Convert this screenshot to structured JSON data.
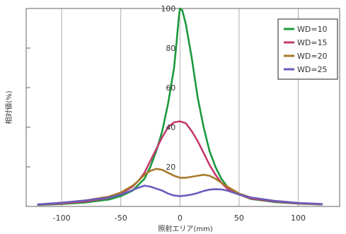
{
  "chart_data": {
    "type": "line",
    "xlabel": "照射エリア(mm)",
    "ylabel": "相対値(%)",
    "xlim": [
      -130,
      135
    ],
    "ylim": [
      0,
      100
    ],
    "x_ticks": [
      -100,
      -50,
      0,
      50,
      100
    ],
    "y_ticks": [
      20,
      40,
      60,
      80,
      100
    ],
    "grid": "vertical",
    "legend_position": "top-right",
    "series": [
      {
        "name": "WD=10",
        "color": "#1a9a3c",
        "points": [
          [
            -120,
            0.8
          ],
          [
            -100,
            1.2
          ],
          [
            -80,
            2.0
          ],
          [
            -60,
            3.5
          ],
          [
            -50,
            5.2
          ],
          [
            -40,
            8
          ],
          [
            -35,
            11
          ],
          [
            -30,
            14
          ],
          [
            -25,
            20
          ],
          [
            -20,
            28
          ],
          [
            -15,
            38
          ],
          [
            -10,
            52
          ],
          [
            -5,
            70
          ],
          [
            -3,
            82
          ],
          [
            -1,
            95
          ],
          [
            0,
            100
          ],
          [
            2,
            99
          ],
          [
            5,
            92
          ],
          [
            10,
            75
          ],
          [
            15,
            55
          ],
          [
            20,
            40
          ],
          [
            25,
            28
          ],
          [
            30,
            20
          ],
          [
            35,
            14
          ],
          [
            40,
            10
          ],
          [
            50,
            6
          ],
          [
            60,
            3.8
          ],
          [
            80,
            2.2
          ],
          [
            100,
            1.4
          ],
          [
            120,
            1.0
          ]
        ]
      },
      {
        "name": "WD=15",
        "color": "#c23a6e",
        "points": [
          [
            -120,
            0.9
          ],
          [
            -100,
            1.5
          ],
          [
            -80,
            2.5
          ],
          [
            -60,
            4.3
          ],
          [
            -50,
            6.5
          ],
          [
            -40,
            10
          ],
          [
            -35,
            13
          ],
          [
            -30,
            17
          ],
          [
            -25,
            23
          ],
          [
            -20,
            29
          ],
          [
            -15,
            35
          ],
          [
            -10,
            40
          ],
          [
            -5,
            42.5
          ],
          [
            0,
            43
          ],
          [
            5,
            42
          ],
          [
            10,
            38
          ],
          [
            15,
            33
          ],
          [
            20,
            27
          ],
          [
            25,
            21
          ],
          [
            30,
            16
          ],
          [
            35,
            12
          ],
          [
            40,
            9
          ],
          [
            50,
            6
          ],
          [
            60,
            4
          ],
          [
            80,
            2.5
          ],
          [
            100,
            1.5
          ],
          [
            120,
            1.0
          ]
        ]
      },
      {
        "name": "WD=20",
        "color": "#a77a2a",
        "points": [
          [
            -120,
            1.0
          ],
          [
            -100,
            1.8
          ],
          [
            -80,
            3
          ],
          [
            -60,
            5
          ],
          [
            -50,
            7
          ],
          [
            -40,
            10.5
          ],
          [
            -35,
            13
          ],
          [
            -30,
            16
          ],
          [
            -25,
            18
          ],
          [
            -20,
            19
          ],
          [
            -15,
            18.5
          ],
          [
            -10,
            17
          ],
          [
            -5,
            15.5
          ],
          [
            0,
            14.5
          ],
          [
            5,
            14.5
          ],
          [
            10,
            15
          ],
          [
            15,
            15.5
          ],
          [
            20,
            16
          ],
          [
            25,
            15.5
          ],
          [
            30,
            14
          ],
          [
            35,
            12
          ],
          [
            40,
            10
          ],
          [
            50,
            6.5
          ],
          [
            60,
            4.5
          ],
          [
            80,
            2.8
          ],
          [
            100,
            1.7
          ],
          [
            120,
            1.1
          ]
        ]
      },
      {
        "name": "WD=25",
        "color": "#6a5bbd",
        "points": [
          [
            -120,
            1.0
          ],
          [
            -100,
            1.9
          ],
          [
            -80,
            3
          ],
          [
            -60,
            4.5
          ],
          [
            -50,
            6
          ],
          [
            -40,
            8.3
          ],
          [
            -35,
            9.5
          ],
          [
            -30,
            10.5
          ],
          [
            -25,
            10
          ],
          [
            -20,
            9
          ],
          [
            -15,
            8
          ],
          [
            -10,
            6.5
          ],
          [
            -5,
            5.5
          ],
          [
            0,
            5.2
          ],
          [
            5,
            5.5
          ],
          [
            10,
            6
          ],
          [
            15,
            6.8
          ],
          [
            20,
            7.8
          ],
          [
            25,
            8.5
          ],
          [
            30,
            8.7
          ],
          [
            35,
            8.6
          ],
          [
            40,
            8
          ],
          [
            50,
            6
          ],
          [
            60,
            4.5
          ],
          [
            80,
            2.8
          ],
          [
            100,
            1.8
          ],
          [
            120,
            1.2
          ]
        ]
      }
    ]
  }
}
